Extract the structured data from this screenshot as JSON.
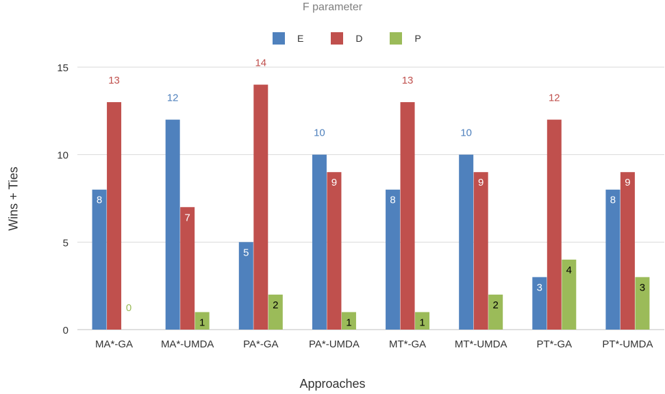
{
  "chart_data": {
    "type": "bar",
    "title": "F parameter",
    "xlabel": "Approaches",
    "ylabel": "Wins + Ties",
    "categories": [
      "MA*-GA",
      "MA*-UMDA",
      "PA*-GA",
      "PA*-UMDA",
      "MT*-GA",
      "MT*-UMDA",
      "PT*-GA",
      "PT*-UMDA"
    ],
    "series": [
      {
        "name": "E",
        "color": "#4f81bd",
        "values": [
          8,
          12,
          5,
          10,
          8,
          10,
          3,
          8
        ]
      },
      {
        "name": "D",
        "color": "#c0504d",
        "values": [
          13,
          7,
          14,
          9,
          13,
          9,
          12,
          9
        ]
      },
      {
        "name": "P",
        "color": "#9bbb59",
        "values": [
          0,
          1,
          2,
          1,
          1,
          2,
          4,
          3
        ]
      }
    ],
    "ylim": [
      0,
      15
    ],
    "yticks": [
      0,
      5,
      10,
      15
    ],
    "grid": true,
    "legend_position": "top-center"
  }
}
